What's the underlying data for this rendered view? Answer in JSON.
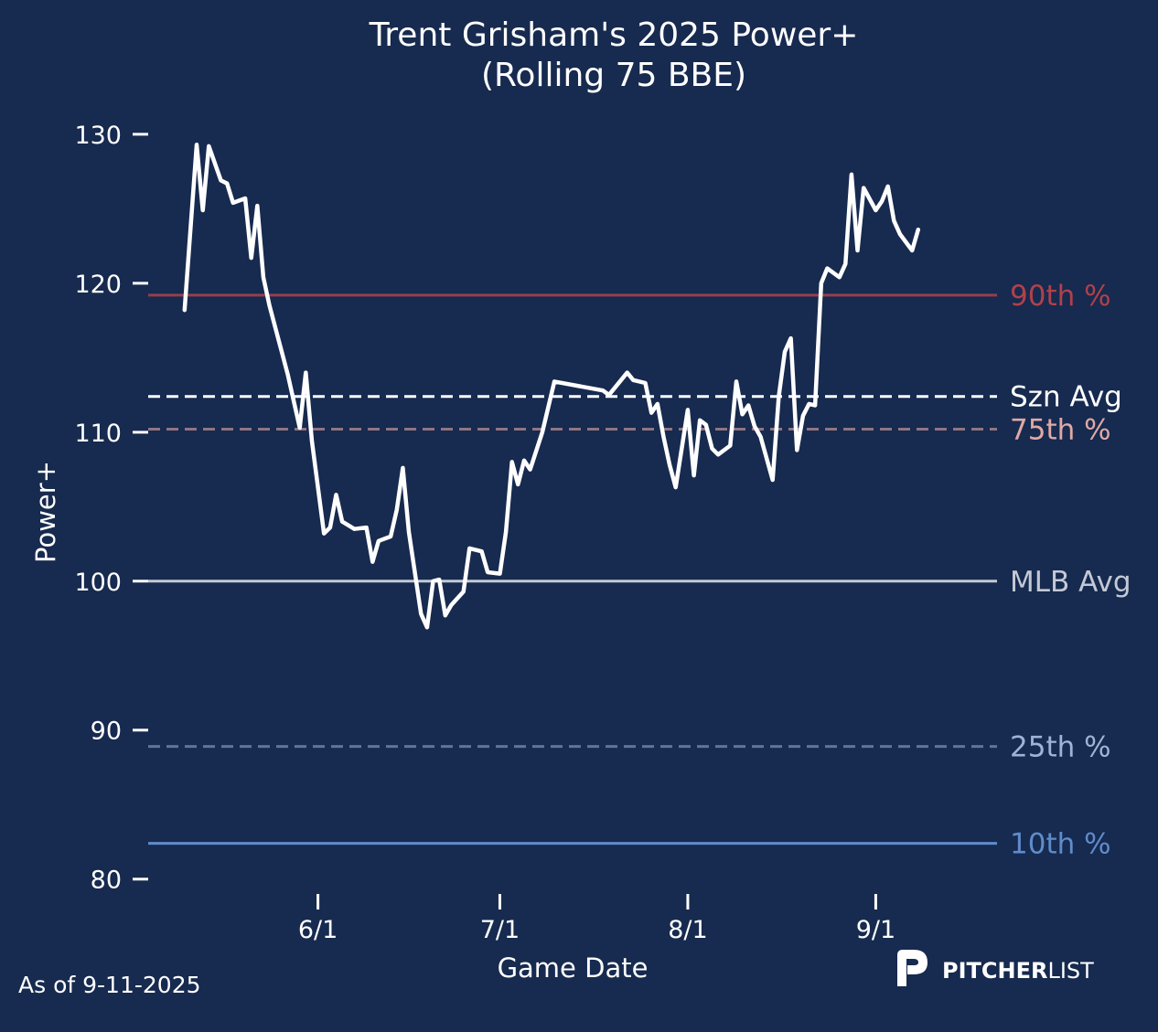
{
  "colors": {
    "background": "#172a4f",
    "line": "#ffffff",
    "p90": "#b0414b",
    "p75": "#e0a9a6",
    "p25": "#9fb3d6",
    "p10": "#5f8ccc",
    "mlb_avg": "#c3c9d6",
    "szn_avg": "#ffffff"
  },
  "footer": {
    "as_of": "As of 9-11-2025",
    "brand_bold": "PITCHER",
    "brand_light": "LIST"
  },
  "chart_data": {
    "type": "line",
    "title": "Trent Grisham's 2025 Power+",
    "subtitle": "(Rolling 75 BBE)",
    "xlabel": "Game Date",
    "ylabel": "Power+",
    "ylim": [
      79,
      133
    ],
    "xlim": [
      "2025-05-04",
      "2025-09-21"
    ],
    "yticks": [
      80,
      90,
      100,
      110,
      120,
      130
    ],
    "xticks": [
      {
        "date": "2025-06-01",
        "label": "6/1"
      },
      {
        "date": "2025-07-01",
        "label": "7/1"
      },
      {
        "date": "2025-08-01",
        "label": "8/1"
      },
      {
        "date": "2025-09-01",
        "label": "9/1"
      }
    ],
    "grid": false,
    "reference_lines": [
      {
        "key": "p90",
        "label": "90th %",
        "value": 119.2,
        "style": "solid"
      },
      {
        "key": "szn_avg",
        "label": "Szn Avg",
        "value": 112.4,
        "style": "dashed"
      },
      {
        "key": "p75",
        "label": "75th %",
        "value": 110.2,
        "style": "dashed"
      },
      {
        "key": "mlb_avg",
        "label": "MLB Avg",
        "value": 100,
        "style": "solid"
      },
      {
        "key": "p25",
        "label": "25th %",
        "value": 88.9,
        "style": "dashed"
      },
      {
        "key": "p10",
        "label": "10th %",
        "value": 82.4,
        "style": "solid"
      }
    ],
    "series": [
      {
        "x": [
          "2025-05-10",
          "2025-05-12",
          "2025-05-13",
          "2025-05-14",
          "2025-05-16",
          "2025-05-17",
          "2025-05-18",
          "2025-05-20",
          "2025-05-21",
          "2025-05-22",
          "2025-05-23",
          "2025-05-24",
          "2025-05-27",
          "2025-05-29",
          "2025-05-30",
          "2025-05-31",
          "2025-06-02",
          "2025-06-03",
          "2025-06-04",
          "2025-06-05",
          "2025-06-07",
          "2025-06-09",
          "2025-06-10",
          "2025-06-11",
          "2025-06-13",
          "2025-06-14",
          "2025-06-15",
          "2025-06-16",
          "2025-06-18",
          "2025-06-19",
          "2025-06-20",
          "2025-06-21",
          "2025-06-22",
          "2025-06-23",
          "2025-06-25",
          "2025-06-26",
          "2025-06-28",
          "2025-06-29",
          "2025-07-01",
          "2025-07-02",
          "2025-07-03",
          "2025-07-04",
          "2025-07-05",
          "2025-07-06",
          "2025-07-08",
          "2025-07-10",
          "2025-07-18",
          "2025-07-19",
          "2025-07-21",
          "2025-07-22",
          "2025-07-23",
          "2025-07-25",
          "2025-07-26",
          "2025-07-27",
          "2025-07-28",
          "2025-07-29",
          "2025-07-30",
          "2025-08-01",
          "2025-08-02",
          "2025-08-03",
          "2025-08-04",
          "2025-08-05",
          "2025-08-06",
          "2025-08-08",
          "2025-08-09",
          "2025-08-10",
          "2025-08-11",
          "2025-08-12",
          "2025-08-13",
          "2025-08-15",
          "2025-08-16",
          "2025-08-17",
          "2025-08-18",
          "2025-08-19",
          "2025-08-20",
          "2025-08-21",
          "2025-08-22",
          "2025-08-23",
          "2025-08-24",
          "2025-08-25",
          "2025-08-26",
          "2025-08-27",
          "2025-08-28",
          "2025-08-29",
          "2025-08-30",
          "2025-09-01",
          "2025-09-02",
          "2025-09-03",
          "2025-09-04",
          "2025-09-05",
          "2025-09-07",
          "2025-09-08"
        ],
        "y": [
          118.2,
          129.3,
          124.9,
          129.2,
          126.9,
          126.7,
          125.4,
          125.7,
          121.7,
          125.2,
          120.4,
          118.5,
          113.9,
          110.3,
          114.0,
          109.4,
          103.2,
          103.6,
          105.8,
          104.0,
          103.5,
          103.6,
          101.3,
          102.7,
          103.0,
          104.8,
          107.6,
          103.3,
          97.8,
          96.9,
          100.0,
          100.1,
          97.7,
          98.4,
          99.3,
          102.2,
          102.0,
          100.6,
          100.5,
          103.3,
          108.0,
          106.5,
          108.1,
          107.5,
          110.0,
          113.4,
          112.8,
          112.5,
          113.5,
          114.0,
          113.5,
          113.3,
          111.3,
          111.9,
          109.7,
          107.8,
          106.3,
          111.5,
          107.1,
          110.8,
          110.5,
          108.9,
          108.5,
          109.1,
          113.4,
          111.2,
          111.8,
          110.4,
          109.7,
          106.8,
          112.4,
          115.4,
          116.3,
          108.8,
          111.1,
          111.9,
          111.8,
          120.0,
          121.0,
          120.7,
          120.4,
          121.3,
          127.3,
          122.2,
          126.4,
          124.9,
          125.5,
          126.5,
          124.2,
          123.3,
          122.2,
          123.6
        ]
      }
    ]
  }
}
